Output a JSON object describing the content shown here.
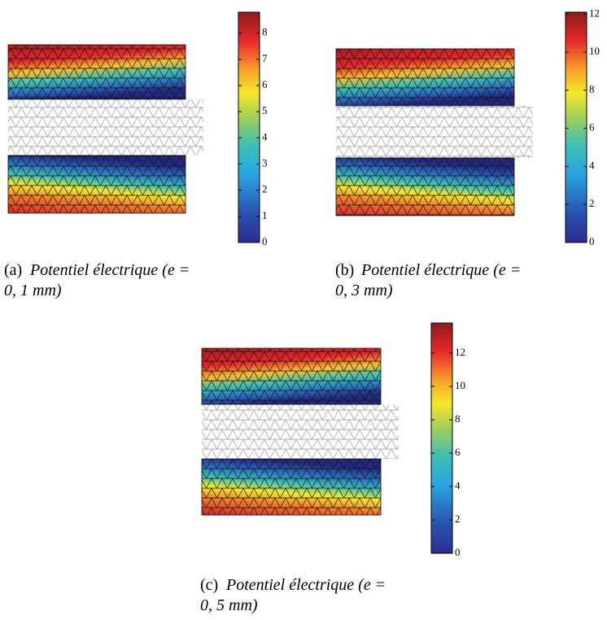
{
  "chart_data": [
    {
      "type": "heatmap",
      "label": "(a)",
      "caption": [
        "Potentiel électrique (e =",
        "0, 1 mm)"
      ],
      "ylim": [
        0,
        8.8
      ],
      "yticks": [
        0,
        1,
        2,
        3,
        4,
        5,
        6,
        7,
        8
      ]
    },
    {
      "type": "heatmap",
      "label": "(b)",
      "caption": [
        "Potentiel électrique (e =",
        "0, 3 mm)"
      ],
      "ylim": [
        0,
        12.1
      ],
      "yticks": [
        0,
        2,
        4,
        6,
        8,
        10,
        12
      ]
    },
    {
      "type": "heatmap",
      "label": "(c)",
      "caption": [
        "Potentiel électrique (e =",
        "0, 5 mm)"
      ],
      "ylim": [
        0,
        13.8
      ],
      "yticks": [
        0,
        2,
        4,
        6,
        8,
        10,
        12
      ]
    }
  ]
}
